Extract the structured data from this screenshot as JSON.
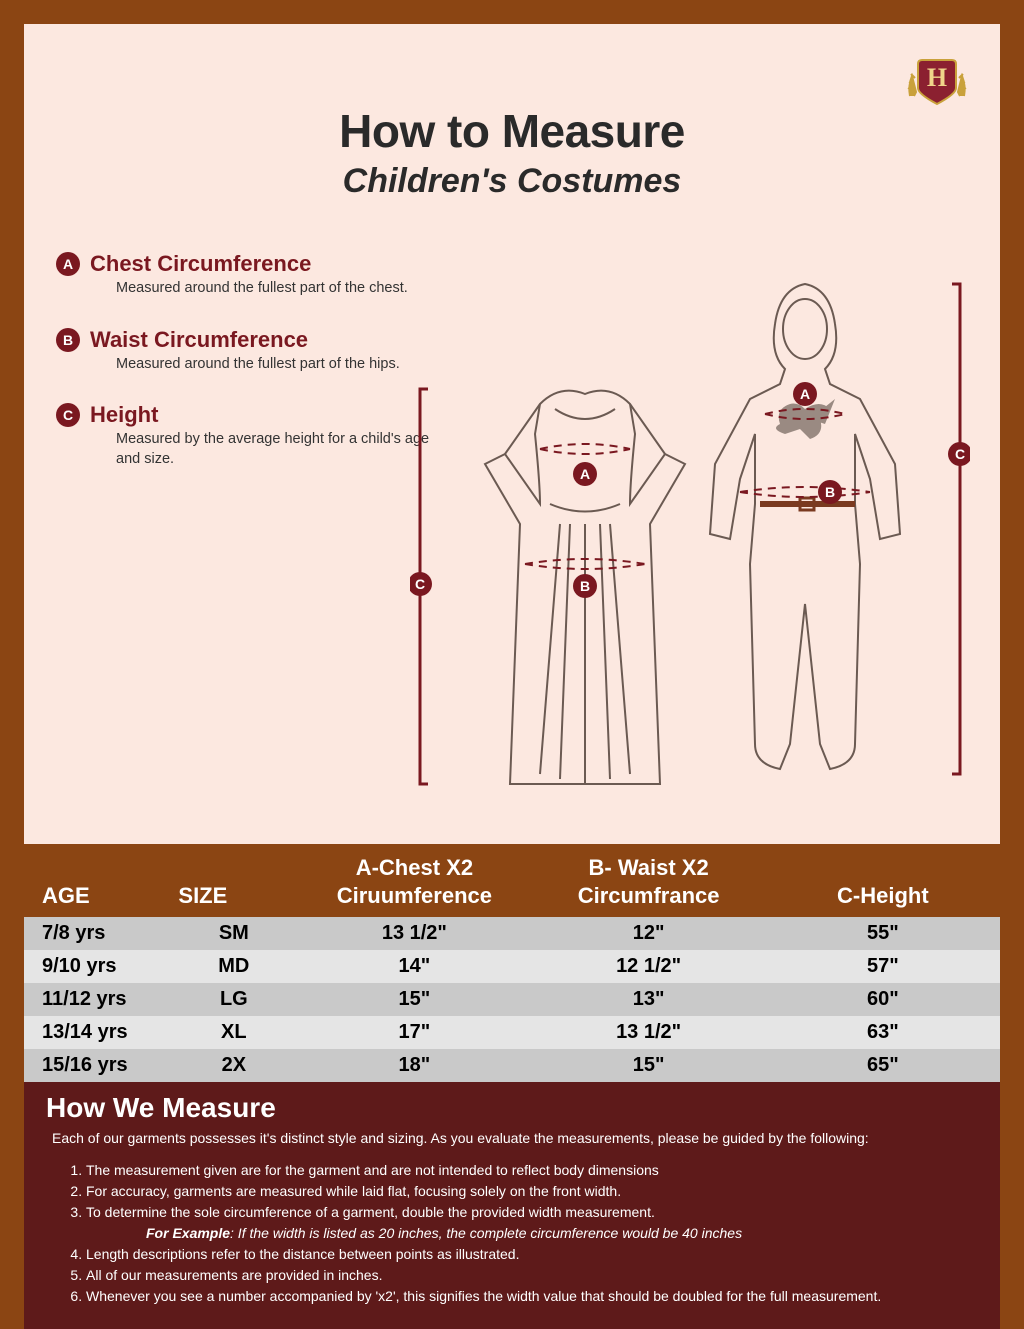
{
  "title": "How to Measure",
  "subtitle": "Children's Costumes",
  "logo": {
    "letter": "H"
  },
  "definitions": [
    {
      "badge": "A",
      "title": "Chest Circumference",
      "desc": "Measured around the fullest part of the chest."
    },
    {
      "badge": "B",
      "title": "Waist Circumference",
      "desc": "Measured around the fullest part of the hips."
    },
    {
      "badge": "C",
      "title": "Height",
      "desc": "Measured by the average height for a child's age and size."
    }
  ],
  "diagram": {
    "marker_a": "A",
    "marker_b": "B",
    "marker_c_left": "C",
    "marker_c_right": "C",
    "stroke": "#6b5a52",
    "dash_stroke": "#7a1820"
  },
  "table": {
    "headers": {
      "age": "AGE",
      "size": "SIZE",
      "a_line1": "A-Chest  X2",
      "a_line2": "Ciruumference",
      "b_line1": "B- Waist  X2",
      "b_line2": "Circumfrance",
      "c": "C-Height"
    },
    "rows": [
      {
        "age": "7/8 yrs",
        "size": "SM",
        "a": "13 1/2\"",
        "b": "12\"",
        "c": "55\""
      },
      {
        "age": "9/10 yrs",
        "size": "MD",
        "a": "14\"",
        "b": "12 1/2\"",
        "c": "57\""
      },
      {
        "age": "11/12 yrs",
        "size": "LG",
        "a": "15\"",
        "b": "13\"",
        "c": "60\""
      },
      {
        "age": "13/14 yrs",
        "size": "XL",
        "a": "17\"",
        "b": "13 1/2\"",
        "c": "63\""
      },
      {
        "age": "15/16 yrs",
        "size": "2X",
        "a": "18\"",
        "b": "15\"",
        "c": "65\""
      }
    ]
  },
  "howWeMeasure": {
    "title": "How We Measure",
    "intro": "Each of our garments possesses it's distinct style and sizing. As you evaluate the measurements, please be guided by the following:",
    "items": [
      "The measurement given are for the garment and are not intended to reflect body dimensions",
      "For accuracy, garments are measured while laid flat, focusing solely on the front width.",
      "To determine the sole circumference of a garment, double the provided width measurement.",
      "Length descriptions refer to the distance between points as illustrated.",
      "All of our measurements are provided in inches.",
      "Whenever you see a number accompanied by  'x2', this signifies the width value that should be doubled for the full measurement."
    ],
    "example_label": "For Example",
    "example_text": ": If the width is listed as 20 inches, the complete circumference would be 40 inches"
  },
  "colors": {
    "outer_bg": "#8b4513",
    "panel_bg": "#fce8e0",
    "maroon": "#7a1820",
    "table_row_a": "#c9c9c9",
    "table_row_b": "#e5e5e5",
    "footer_bg": "#5e1a1a"
  }
}
